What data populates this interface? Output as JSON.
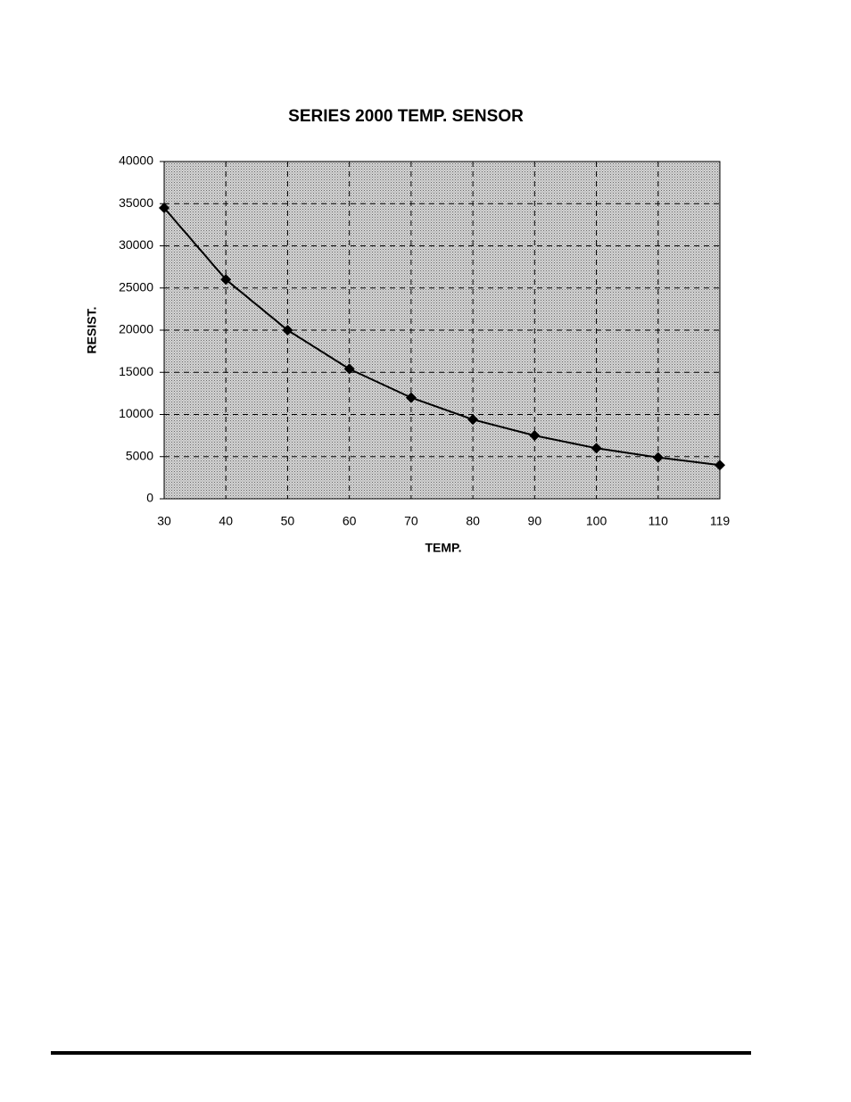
{
  "chart_data": {
    "type": "line",
    "title": "SERIES 2000 TEMP. SENSOR",
    "x_label": "TEMP.",
    "y_label": "RESIST.",
    "categories": [
      "30",
      "40",
      "50",
      "60",
      "70",
      "80",
      "90",
      "100",
      "110",
      "119"
    ],
    "series": [
      {
        "name": "RESIST.",
        "color": "#000000",
        "values": [
          34500,
          26000,
          20000,
          15400,
          12000,
          9400,
          7500,
          6000,
          4900,
          4000
        ]
      }
    ],
    "ylim": [
      0,
      40000
    ],
    "yticks": [
      0,
      5000,
      10000,
      15000,
      20000,
      25000,
      30000,
      35000,
      40000
    ],
    "grid": true
  }
}
